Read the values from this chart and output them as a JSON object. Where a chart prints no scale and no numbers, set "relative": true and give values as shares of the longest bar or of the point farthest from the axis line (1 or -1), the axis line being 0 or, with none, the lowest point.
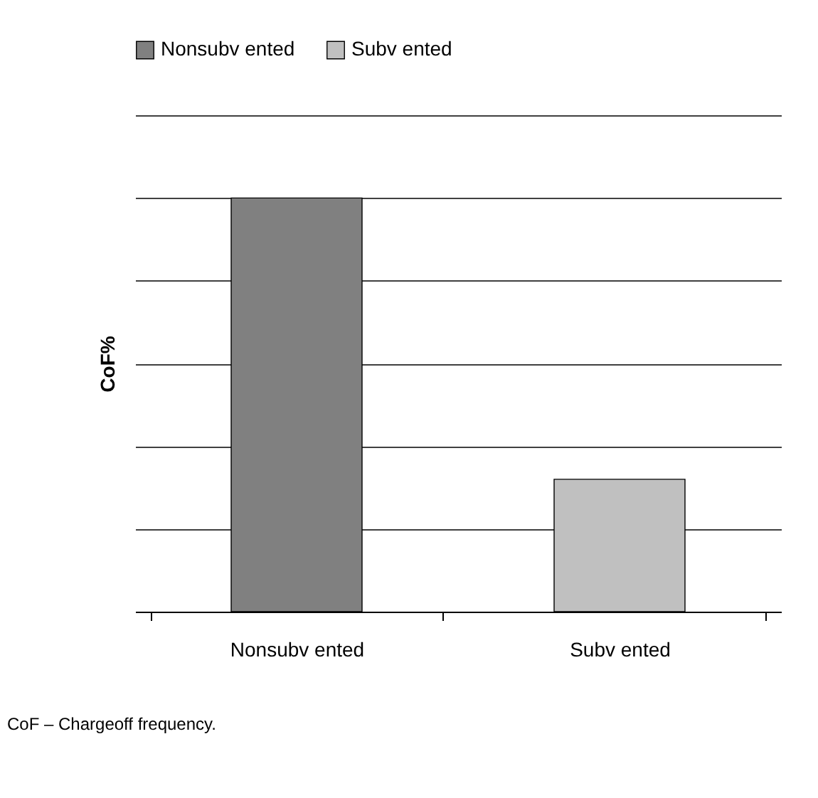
{
  "chart_data": {
    "type": "bar",
    "relative": true,
    "categories": [
      "Nonsubv ented",
      "Subv ented"
    ],
    "series": [
      {
        "name": "Nonsubv ented",
        "color": "#808080",
        "values": [
          1,
          null
        ]
      },
      {
        "name": "Subv ented",
        "color": "#c0c0c0",
        "values": [
          null,
          0.32
        ]
      }
    ],
    "ylabel": "CoF%",
    "annotations": [
      "CoF – Chargeoff frequency."
    ],
    "grid": "y",
    "legend": "top"
  }
}
